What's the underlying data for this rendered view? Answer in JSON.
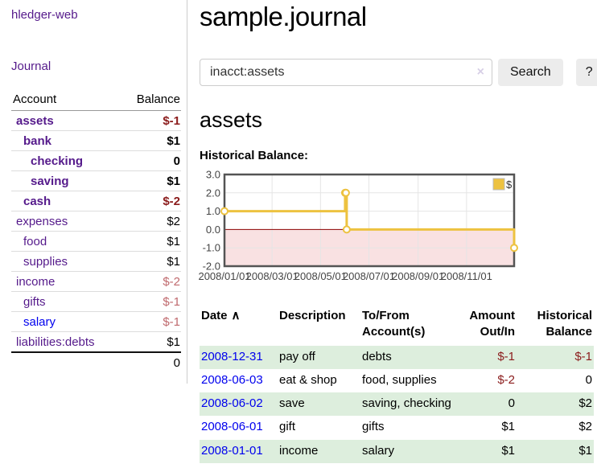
{
  "sidebar": {
    "app_title": "hledger-web",
    "nav_journal_label": "Journal",
    "accounts_table": {
      "account_header": "Account",
      "balance_header": "Balance",
      "rows": [
        {
          "account": "assets",
          "balance": "$-1",
          "indent": 1,
          "bold": true,
          "balance_style": "neg-strong",
          "link_style": "acct-purple"
        },
        {
          "account": "bank",
          "balance": "$1",
          "indent": 2,
          "bold": true,
          "balance_style": "normal",
          "link_style": "acct-purple"
        },
        {
          "account": "checking",
          "balance": "0",
          "indent": 3,
          "bold": true,
          "balance_style": "normal",
          "link_style": "acct-purple"
        },
        {
          "account": "saving",
          "balance": "$1",
          "indent": 3,
          "bold": true,
          "balance_style": "normal",
          "link_style": "acct-purple"
        },
        {
          "account": "cash",
          "balance": "$-2",
          "indent": 2,
          "bold": true,
          "balance_style": "neg-strong",
          "link_style": "acct-purple"
        },
        {
          "account": "expenses",
          "balance": "$2",
          "indent": 1,
          "bold": false,
          "balance_style": "normal",
          "link_style": "acct-purple"
        },
        {
          "account": "food",
          "balance": "$1",
          "indent": 2,
          "bold": false,
          "balance_style": "normal",
          "link_style": "acct-purple"
        },
        {
          "account": "supplies",
          "balance": "$1",
          "indent": 2,
          "bold": false,
          "balance_style": "normal",
          "link_style": "acct-purple"
        },
        {
          "account": "income",
          "balance": "$-2",
          "indent": 1,
          "bold": false,
          "balance_style": "neg-muted",
          "link_style": "acct-purple"
        },
        {
          "account": "gifts",
          "balance": "$-1",
          "indent": 2,
          "bold": false,
          "balance_style": "neg-muted",
          "link_style": "acct-purple"
        },
        {
          "account": "salary",
          "balance": "$-1",
          "indent": 2,
          "bold": false,
          "balance_style": "neg-muted",
          "link_style": "acct-blue"
        },
        {
          "account": "liabilities:debts",
          "balance": "$1",
          "indent": 1,
          "bold": false,
          "balance_style": "normal",
          "link_style": "acct-purple"
        }
      ],
      "total": "0"
    }
  },
  "header": {
    "title": "sample.journal"
  },
  "search": {
    "value": "inacct:assets",
    "clear_icon": "×",
    "search_button_label": "Search",
    "help_button_label": "?"
  },
  "account_page": {
    "heading": "assets",
    "chart_label": "Historical Balance:"
  },
  "chart_data": {
    "type": "line",
    "step": true,
    "title": "Historical Balance",
    "legend_position": "top-right",
    "grid": true,
    "xlim": [
      "2008/01/01",
      "2008/12/31"
    ],
    "ylim": [
      -2.0,
      3.0
    ],
    "yticks": [
      3.0,
      2.0,
      1.0,
      0.0,
      -1.0,
      -2.0
    ],
    "xticks": [
      "2008/01/01",
      "2008/03/01",
      "2008/05/01",
      "2008/07/01",
      "2008/09/01",
      "2008/11/01"
    ],
    "series": [
      {
        "name": "$",
        "color": "#edc240",
        "points": [
          {
            "x": "2008/01/01",
            "y": 1
          },
          {
            "x": "2008/06/01",
            "y": 2
          },
          {
            "x": "2008/06/02",
            "y": 2
          },
          {
            "x": "2008/06/03",
            "y": 0
          },
          {
            "x": "2008/12/31",
            "y": -1
          }
        ]
      }
    ],
    "negative_region_color": "#f9e1e2",
    "zero_line_color": "#8b0000",
    "border_color": "#545454",
    "grid_color": "#e5e5e5",
    "tick_color": "#444444"
  },
  "register_table": {
    "headers": [
      "Date",
      "Description",
      "To/From Account(s)",
      "Amount Out/In",
      "Historical Balance"
    ],
    "sort_icon": "∧",
    "rows": [
      {
        "date": "2008-12-31",
        "description": "pay off",
        "accounts": "debts",
        "amount": "$-1",
        "balance": "$-1"
      },
      {
        "date": "2008-06-03",
        "description": "eat & shop",
        "accounts": "food, supplies",
        "amount": "$-2",
        "balance": "0"
      },
      {
        "date": "2008-06-02",
        "description": "save",
        "accounts": "saving, checking",
        "amount": "0",
        "balance": "$2"
      },
      {
        "date": "2008-06-01",
        "description": "gift",
        "accounts": "gifts",
        "amount": "$1",
        "balance": "$2"
      },
      {
        "date": "2008-01-01",
        "description": "income",
        "accounts": "salary",
        "amount": "$1",
        "balance": "$1"
      }
    ]
  }
}
